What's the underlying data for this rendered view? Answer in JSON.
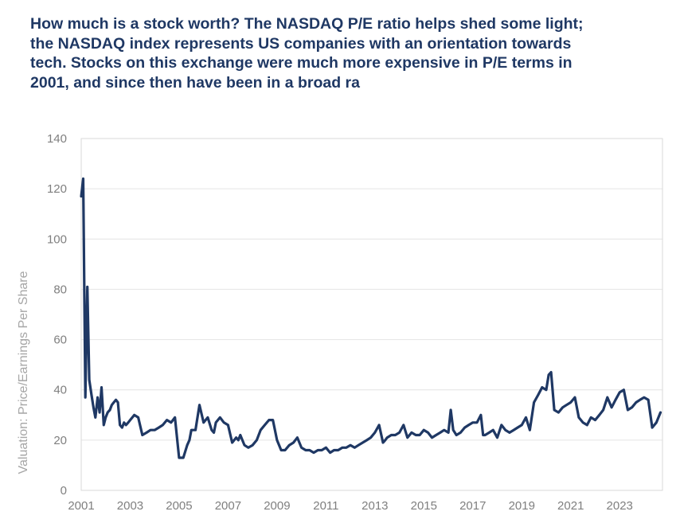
{
  "chart_data": {
    "type": "line",
    "title": "How much is a stock worth? The NASDAQ P/E ratio helps shed some light; the NASDAQ index represents US companies with an orientation towards tech. Stocks on this exchange were much more expensive in P/E terms in 2001, and since then have been in a broad ra",
    "ylabel": "Valuation: Price/Earnings Per Share",
    "xlabel": "",
    "xlim": [
      2001,
      2024.75
    ],
    "ylim": [
      0,
      140
    ],
    "y_ticks": [
      0,
      20,
      40,
      60,
      80,
      100,
      120,
      140
    ],
    "x_ticks": [
      2001,
      2003,
      2005,
      2007,
      2009,
      2011,
      2013,
      2015,
      2017,
      2019,
      2021,
      2023
    ],
    "grid": true,
    "legend": "none",
    "color": "#1f3864",
    "series": [
      {
        "x": [
          2001.0,
          2001.08,
          2001.17,
          2001.25,
          2001.33,
          2001.42,
          2001.5,
          2001.58,
          2001.67,
          2001.75,
          2001.83,
          2001.92,
          2002.0,
          2002.08,
          2002.17,
          2002.25,
          2002.33,
          2002.42,
          2002.5,
          2002.58,
          2002.67,
          2002.75,
          2002.83,
          2002.92,
          2003.0,
          2003.17,
          2003.33,
          2003.5,
          2003.67,
          2003.83,
          2004.0,
          2004.17,
          2004.33,
          2004.5,
          2004.67,
          2004.83,
          2005.0,
          2005.17,
          2005.33,
          2005.42,
          2005.5,
          2005.67,
          2005.83,
          2006.0,
          2006.17,
          2006.33,
          2006.42,
          2006.5,
          2006.67,
          2006.83,
          2007.0,
          2007.17,
          2007.33,
          2007.42,
          2007.5,
          2007.67,
          2007.83,
          2008.0,
          2008.17,
          2008.33,
          2008.5,
          2008.67,
          2008.83,
          2009.0,
          2009.17,
          2009.33,
          2009.5,
          2009.67,
          2009.83,
          2010.0,
          2010.17,
          2010.33,
          2010.5,
          2010.67,
          2010.83,
          2011.0,
          2011.17,
          2011.33,
          2011.5,
          2011.67,
          2011.83,
          2012.0,
          2012.17,
          2012.33,
          2012.5,
          2012.67,
          2012.83,
          2013.0,
          2013.17,
          2013.33,
          2013.42,
          2013.5,
          2013.67,
          2013.83,
          2014.0,
          2014.17,
          2014.33,
          2014.5,
          2014.67,
          2014.83,
          2015.0,
          2015.17,
          2015.33,
          2015.5,
          2015.67,
          2015.83,
          2016.0,
          2016.1,
          2016.2,
          2016.33,
          2016.5,
          2016.67,
          2016.83,
          2017.0,
          2017.17,
          2017.33,
          2017.42,
          2017.5,
          2017.67,
          2017.83,
          2018.0,
          2018.17,
          2018.33,
          2018.5,
          2018.67,
          2018.83,
          2019.0,
          2019.17,
          2019.33,
          2019.5,
          2019.67,
          2019.83,
          2020.0,
          2020.1,
          2020.2,
          2020.33,
          2020.5,
          2020.67,
          2020.83,
          2021.0,
          2021.17,
          2021.33,
          2021.5,
          2021.67,
          2021.83,
          2022.0,
          2022.17,
          2022.33,
          2022.5,
          2022.67,
          2022.83,
          2023.0,
          2023.17,
          2023.33,
          2023.5,
          2023.67,
          2023.83,
          2024.0,
          2024.17,
          2024.33,
          2024.5,
          2024.67
        ],
        "values": [
          117,
          124,
          37,
          81,
          44,
          38,
          33,
          29,
          37,
          31,
          41,
          26,
          29,
          31,
          32,
          34,
          35,
          36,
          35,
          26,
          25,
          27,
          26,
          27,
          28,
          30,
          29,
          22,
          23,
          24,
          24,
          25,
          26,
          28,
          27,
          29,
          13,
          13,
          18,
          20,
          24,
          24,
          34,
          27,
          29,
          24,
          23,
          27,
          29,
          27,
          26,
          19,
          21,
          20,
          22,
          18,
          17,
          18,
          20,
          24,
          26,
          28,
          28,
          20,
          16,
          16,
          18,
          19,
          21,
          17,
          16,
          16,
          15,
          16,
          16,
          17,
          15,
          16,
          16,
          17,
          17,
          18,
          17,
          18,
          19,
          20,
          21,
          23,
          26,
          19,
          20,
          21,
          22,
          22,
          23,
          26,
          21,
          23,
          22,
          22,
          24,
          23,
          21,
          22,
          23,
          24,
          23,
          32,
          24,
          22,
          23,
          25,
          26,
          27,
          27,
          30,
          22,
          22,
          23,
          24,
          21,
          26,
          24,
          23,
          24,
          25,
          26,
          29,
          24,
          35,
          38,
          41,
          40,
          46,
          47,
          32,
          31,
          33,
          34,
          35,
          37,
          29,
          27,
          26,
          29,
          28,
          30,
          32,
          37,
          33,
          36,
          39,
          40,
          32,
          33,
          35,
          36,
          37,
          36,
          25,
          27,
          31
        ]
      }
    ]
  }
}
